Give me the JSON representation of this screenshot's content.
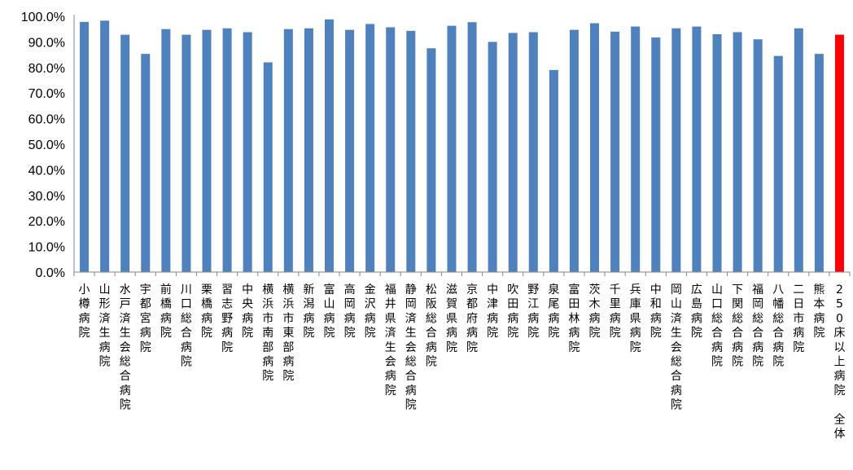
{
  "chart_data": {
    "type": "bar",
    "categories": [
      "小樽病院",
      "山形済生病院",
      "水戸済生会総合病院",
      "宇都宮病院",
      "前橋病院",
      "川口総合病院",
      "栗橋病院",
      "習志野病院",
      "中央病院",
      "横浜市南部病院",
      "横浜市東部病院",
      "新潟病院",
      "富山病院",
      "高岡病院",
      "金沢病院",
      "福井県済生会病院",
      "静岡済生会総合病院",
      "松阪総合病院",
      "滋賀県病院",
      "京都府病院",
      "中津病院",
      "吹田病院",
      "野江病院",
      "泉尾病院",
      "富田林病院",
      "茨木病院",
      "千里病院",
      "兵庫県病院",
      "中和病院",
      "岡山済生会総合病院",
      "広島病院",
      "山口総合病院",
      "下関総合病院",
      "福岡総合病院",
      "八幡総合病院",
      "二日市病院",
      "熊本病院",
      "250床以上病院　全体"
    ],
    "values": [
      97.8,
      98.3,
      92.8,
      85.3,
      95.0,
      92.8,
      94.7,
      95.3,
      93.8,
      82.0,
      95.0,
      95.3,
      98.8,
      94.7,
      97.0,
      95.7,
      94.3,
      87.5,
      96.3,
      97.7,
      90.0,
      93.5,
      93.8,
      79.0,
      94.7,
      97.3,
      94.0,
      96.0,
      91.7,
      95.3,
      96.0,
      93.0,
      93.8,
      91.0,
      84.5,
      95.3,
      85.3,
      92.8
    ],
    "bar_colors": [
      "#4f81bd",
      "#4f81bd",
      "#4f81bd",
      "#4f81bd",
      "#4f81bd",
      "#4f81bd",
      "#4f81bd",
      "#4f81bd",
      "#4f81bd",
      "#4f81bd",
      "#4f81bd",
      "#4f81bd",
      "#4f81bd",
      "#4f81bd",
      "#4f81bd",
      "#4f81bd",
      "#4f81bd",
      "#4f81bd",
      "#4f81bd",
      "#4f81bd",
      "#4f81bd",
      "#4f81bd",
      "#4f81bd",
      "#4f81bd",
      "#4f81bd",
      "#4f81bd",
      "#4f81bd",
      "#4f81bd",
      "#4f81bd",
      "#4f81bd",
      "#4f81bd",
      "#4f81bd",
      "#4f81bd",
      "#4f81bd",
      "#4f81bd",
      "#4f81bd",
      "#4f81bd",
      "#ff0000"
    ],
    "yticks": [
      "0.0%",
      "10.0%",
      "20.0%",
      "30.0%",
      "40.0%",
      "50.0%",
      "60.0%",
      "70.0%",
      "80.0%",
      "90.0%",
      "100.0%"
    ],
    "ylim": [
      0,
      100
    ],
    "title": "",
    "xlabel": "",
    "ylabel": "",
    "grid": false,
    "legend": "none"
  }
}
